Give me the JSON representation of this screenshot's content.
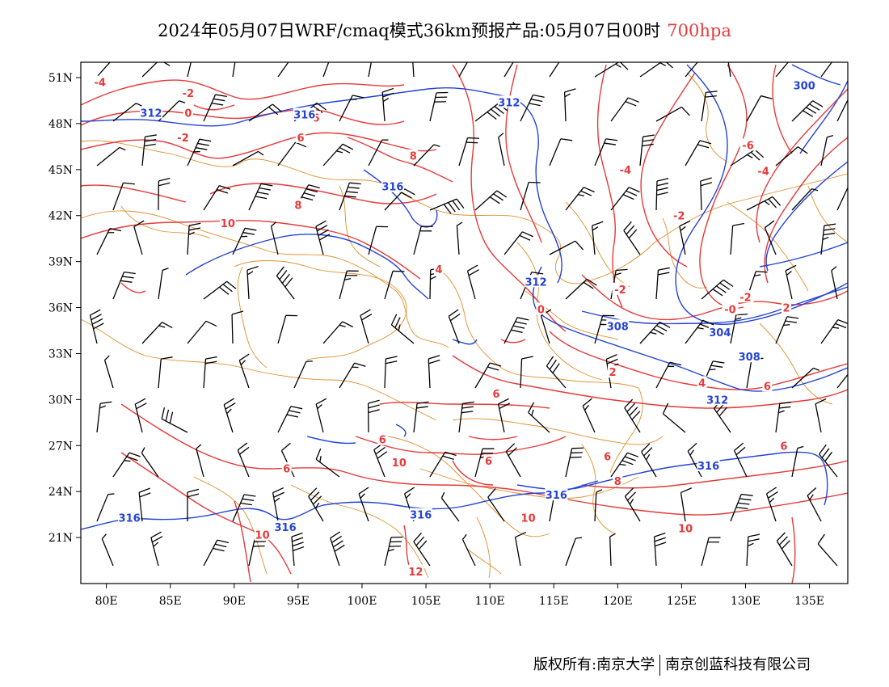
{
  "title": {
    "text": "2024年05月07日WRF/cmaq模式36km预报产品:05月07日00时",
    "level": "700hpa",
    "level_color": "#e8393a"
  },
  "axes": {
    "lat_labels": [
      "51N",
      "48N",
      "45N",
      "42N",
      "39N",
      "36N",
      "33N",
      "30N",
      "27N",
      "24N",
      "21N"
    ],
    "lat_values": [
      51,
      48,
      45,
      42,
      39,
      36,
      33,
      30,
      27,
      24,
      21
    ],
    "lon_labels": [
      "80E",
      "85E",
      "90E",
      "95E",
      "100E",
      "105E",
      "110E",
      "115E",
      "120E",
      "125E",
      "130E",
      "135E"
    ],
    "lon_values": [
      80,
      85,
      90,
      95,
      100,
      105,
      110,
      115,
      120,
      125,
      130,
      135
    ],
    "lon_range": [
      78,
      138
    ],
    "lat_range": [
      18,
      52
    ]
  },
  "colors": {
    "temperature_contour": "#e8393a",
    "height_contour": "#2443d6",
    "boundaries": "#e0902d",
    "wind_barb": "#000000"
  },
  "temperature_labels": [
    {
      "text": "-4",
      "lon": 79.5,
      "lat": 50.7
    },
    {
      "text": "-2",
      "lon": 86.4,
      "lat": 50.0
    },
    {
      "text": "0",
      "lon": 86.4,
      "lat": 48.7
    },
    {
      "text": "-2",
      "lon": 86.0,
      "lat": 47.1
    },
    {
      "text": "6",
      "lon": 96.4,
      "lat": 48.4
    },
    {
      "text": "6",
      "lon": 95.2,
      "lat": 47.1
    },
    {
      "text": "8",
      "lon": 104.0,
      "lat": 45.9
    },
    {
      "text": "-4",
      "lon": 120.6,
      "lat": 45.0
    },
    {
      "text": "-6",
      "lon": 130.2,
      "lat": 46.6
    },
    {
      "text": "-4",
      "lon": 131.4,
      "lat": 44.9
    },
    {
      "text": "8",
      "lon": 95.0,
      "lat": 42.7
    },
    {
      "text": "10",
      "lon": 89.5,
      "lat": 41.5
    },
    {
      "text": "-2",
      "lon": 124.8,
      "lat": 42.0
    },
    {
      "text": "4",
      "lon": 106.0,
      "lat": 38.5
    },
    {
      "text": "-2",
      "lon": 120.2,
      "lat": 37.2
    },
    {
      "text": "0",
      "lon": 114.0,
      "lat": 35.9
    },
    {
      "text": "-2",
      "lon": 130.0,
      "lat": 36.7
    },
    {
      "text": "-0",
      "lon": 128.8,
      "lat": 35.9
    },
    {
      "text": "2",
      "lon": 133.2,
      "lat": 36.0
    },
    {
      "text": "2",
      "lon": 119.6,
      "lat": 31.8
    },
    {
      "text": "4",
      "lon": 126.6,
      "lat": 31.1
    },
    {
      "text": "6",
      "lon": 131.7,
      "lat": 30.9
    },
    {
      "text": "6",
      "lon": 110.5,
      "lat": 30.4
    },
    {
      "text": "6",
      "lon": 101.6,
      "lat": 27.4
    },
    {
      "text": "6",
      "lon": 133.0,
      "lat": 27.0
    },
    {
      "text": "10",
      "lon": 102.9,
      "lat": 25.9
    },
    {
      "text": "6",
      "lon": 94.1,
      "lat": 25.5
    },
    {
      "text": "6",
      "lon": 109.9,
      "lat": 26.0
    },
    {
      "text": "6",
      "lon": 119.2,
      "lat": 26.3
    },
    {
      "text": "8",
      "lon": 120.0,
      "lat": 24.7
    },
    {
      "text": "10",
      "lon": 113.0,
      "lat": 22.3
    },
    {
      "text": "10",
      "lon": 125.3,
      "lat": 21.6
    },
    {
      "text": "10",
      "lon": 92.2,
      "lat": 21.2
    },
    {
      "text": "12",
      "lon": 104.2,
      "lat": 18.8
    }
  ],
  "height_labels": [
    {
      "text": "312",
      "lon": 83.5,
      "lat": 48.7
    },
    {
      "text": "316",
      "lon": 95.5,
      "lat": 48.6
    },
    {
      "text": "312",
      "lon": 111.5,
      "lat": 49.4
    },
    {
      "text": "300",
      "lon": 134.6,
      "lat": 50.5
    },
    {
      "text": "316",
      "lon": 102.4,
      "lat": 43.9
    },
    {
      "text": "312",
      "lon": 113.6,
      "lat": 37.7
    },
    {
      "text": "308",
      "lon": 120.0,
      "lat": 34.8
    },
    {
      "text": "304",
      "lon": 128.0,
      "lat": 34.4
    },
    {
      "text": "308",
      "lon": 130.3,
      "lat": 32.8
    },
    {
      "text": "312",
      "lon": 127.8,
      "lat": 30.0
    },
    {
      "text": "316",
      "lon": 127.1,
      "lat": 25.7
    },
    {
      "text": "316",
      "lon": 115.2,
      "lat": 23.8
    },
    {
      "text": "316",
      "lon": 104.6,
      "lat": 22.5
    },
    {
      "text": "316",
      "lon": 81.8,
      "lat": 22.3
    },
    {
      "text": "316",
      "lon": 94.0,
      "lat": 21.7
    }
  ],
  "copyright": {
    "owner": "版权所有:南京大学",
    "company": "南京创蓝科技有限公司"
  }
}
